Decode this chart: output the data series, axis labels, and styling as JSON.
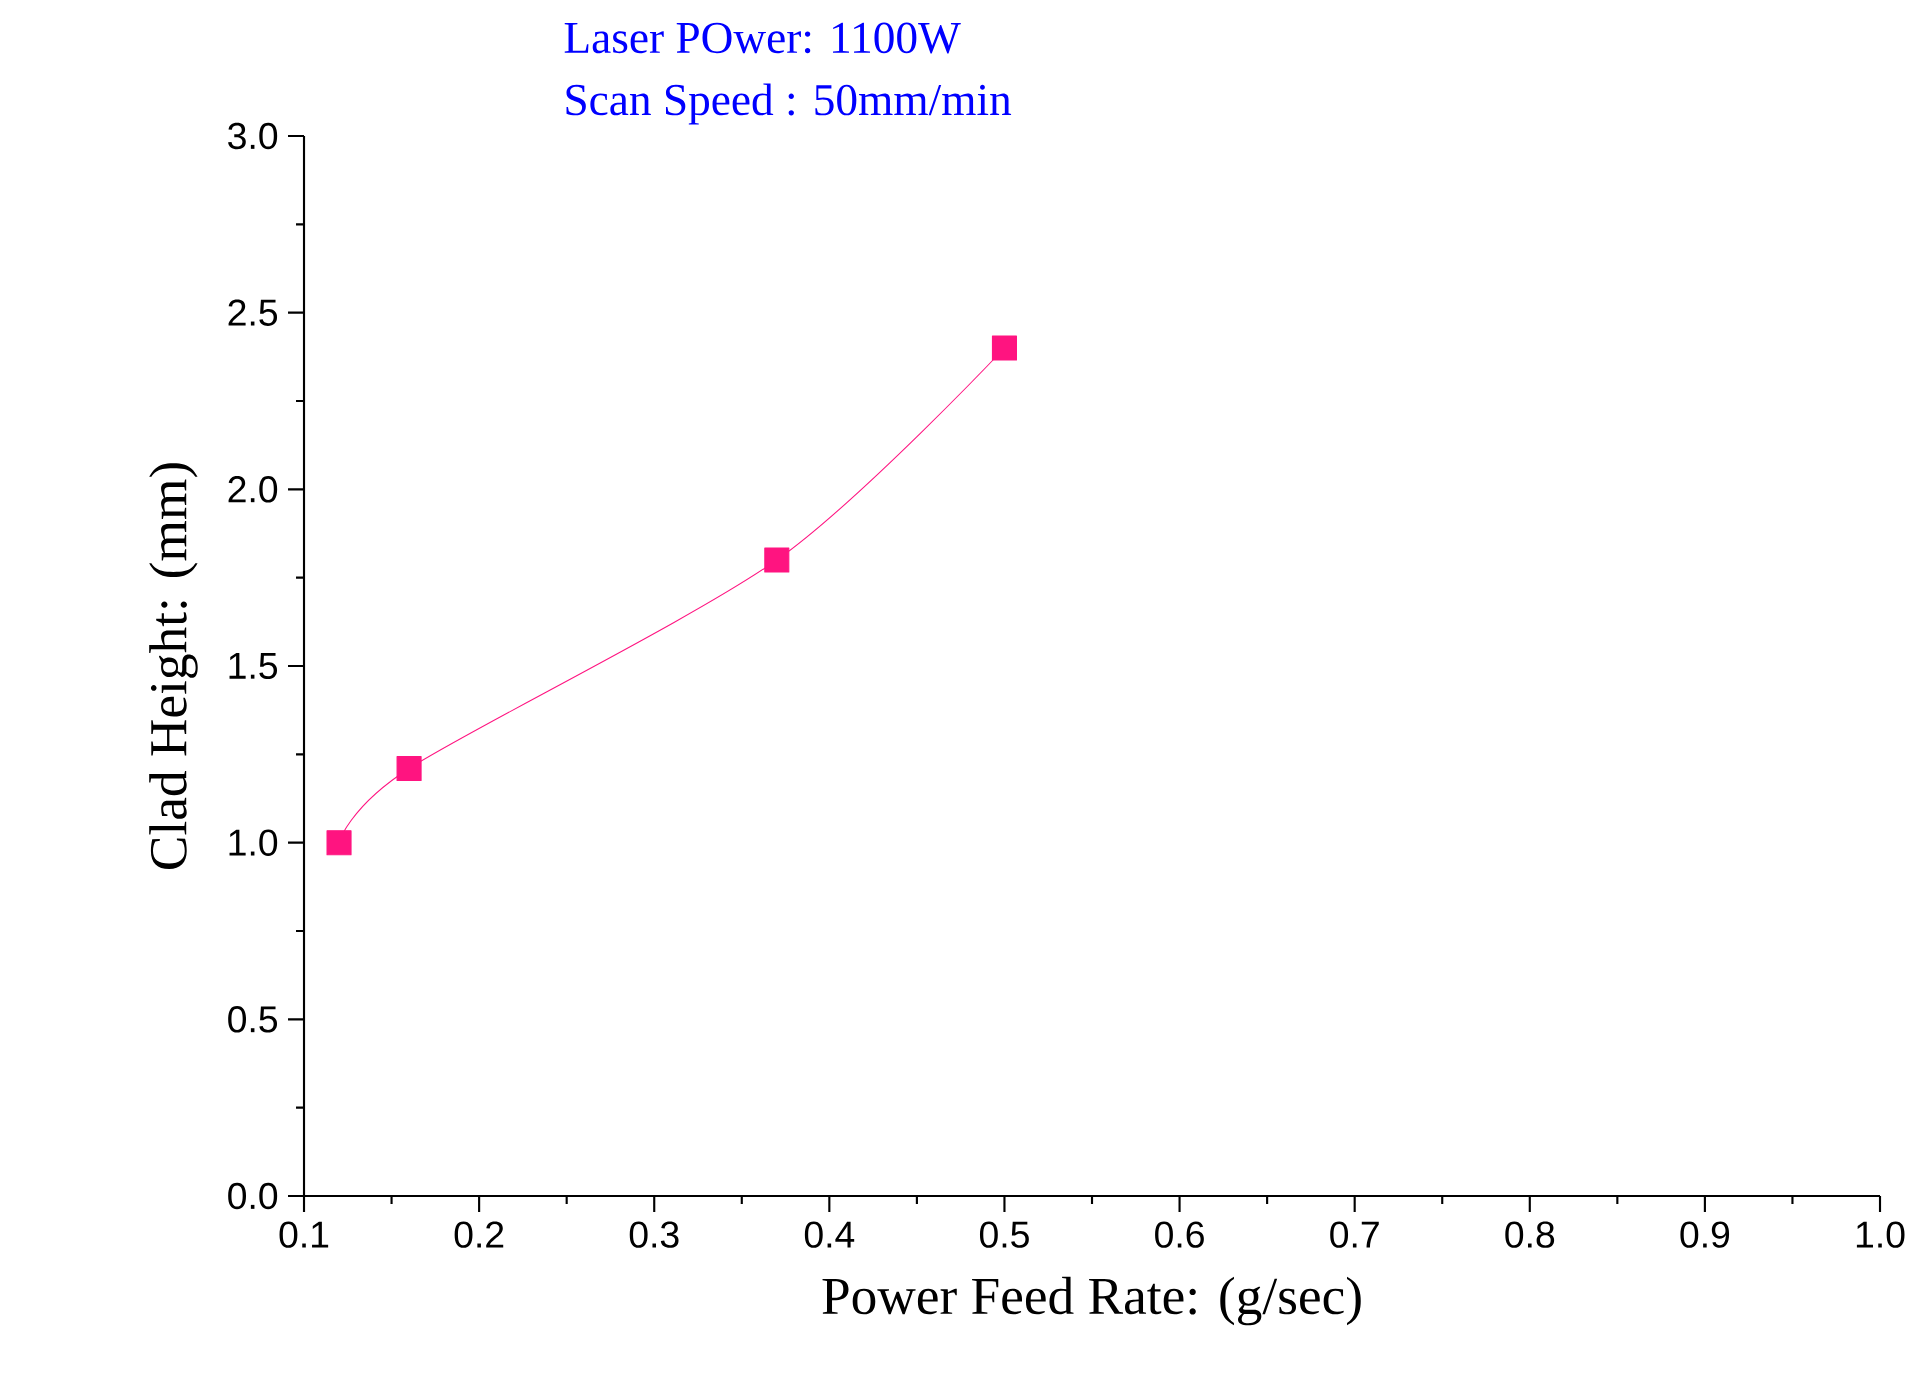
{
  "chart_data": {
    "type": "line",
    "title": "Laser POwer: 1100W",
    "subtitle": "Scan Speed : 50mm/min",
    "xlabel": "Power Feed Rate: (g/sec)",
    "ylabel": "Clad Height: (mm)",
    "x": [
      0.12,
      0.16,
      0.37,
      0.5
    ],
    "series": [
      {
        "color": "#ff1480",
        "values": [
          1.0,
          1.21,
          1.8,
          2.4
        ]
      }
    ],
    "marker": "square",
    "line_style": "solid",
    "xlim": [
      0.1,
      1.0
    ],
    "ylim": [
      0,
      3.0
    ],
    "xticks": [
      {
        "value": 0.1,
        "label": "0.1"
      },
      {
        "value": 0.2,
        "label": "0.2"
      },
      {
        "value": 0.3,
        "label": "0.3"
      },
      {
        "value": 0.4,
        "label": "0.4"
      },
      {
        "value": 0.5,
        "label": "0.5"
      },
      {
        "value": 0.6,
        "label": "0.6"
      },
      {
        "value": 0.7,
        "label": "0.7"
      },
      {
        "value": 0.8,
        "label": "0.8"
      },
      {
        "value": 0.9,
        "label": "0.9"
      },
      {
        "value": 1.0,
        "label": "1.0"
      }
    ],
    "yticks": [
      {
        "value": 0,
        "label": "0.0"
      },
      {
        "value": 0.5,
        "label": "0.5"
      },
      {
        "value": 1.0,
        "label": "1.0"
      },
      {
        "value": 1.5,
        "label": "1.5"
      },
      {
        "value": 2.0,
        "label": "2.0"
      },
      {
        "value": 2.5,
        "label": "2.5"
      },
      {
        "value": 3.0,
        "label": "3.0"
      }
    ]
  }
}
